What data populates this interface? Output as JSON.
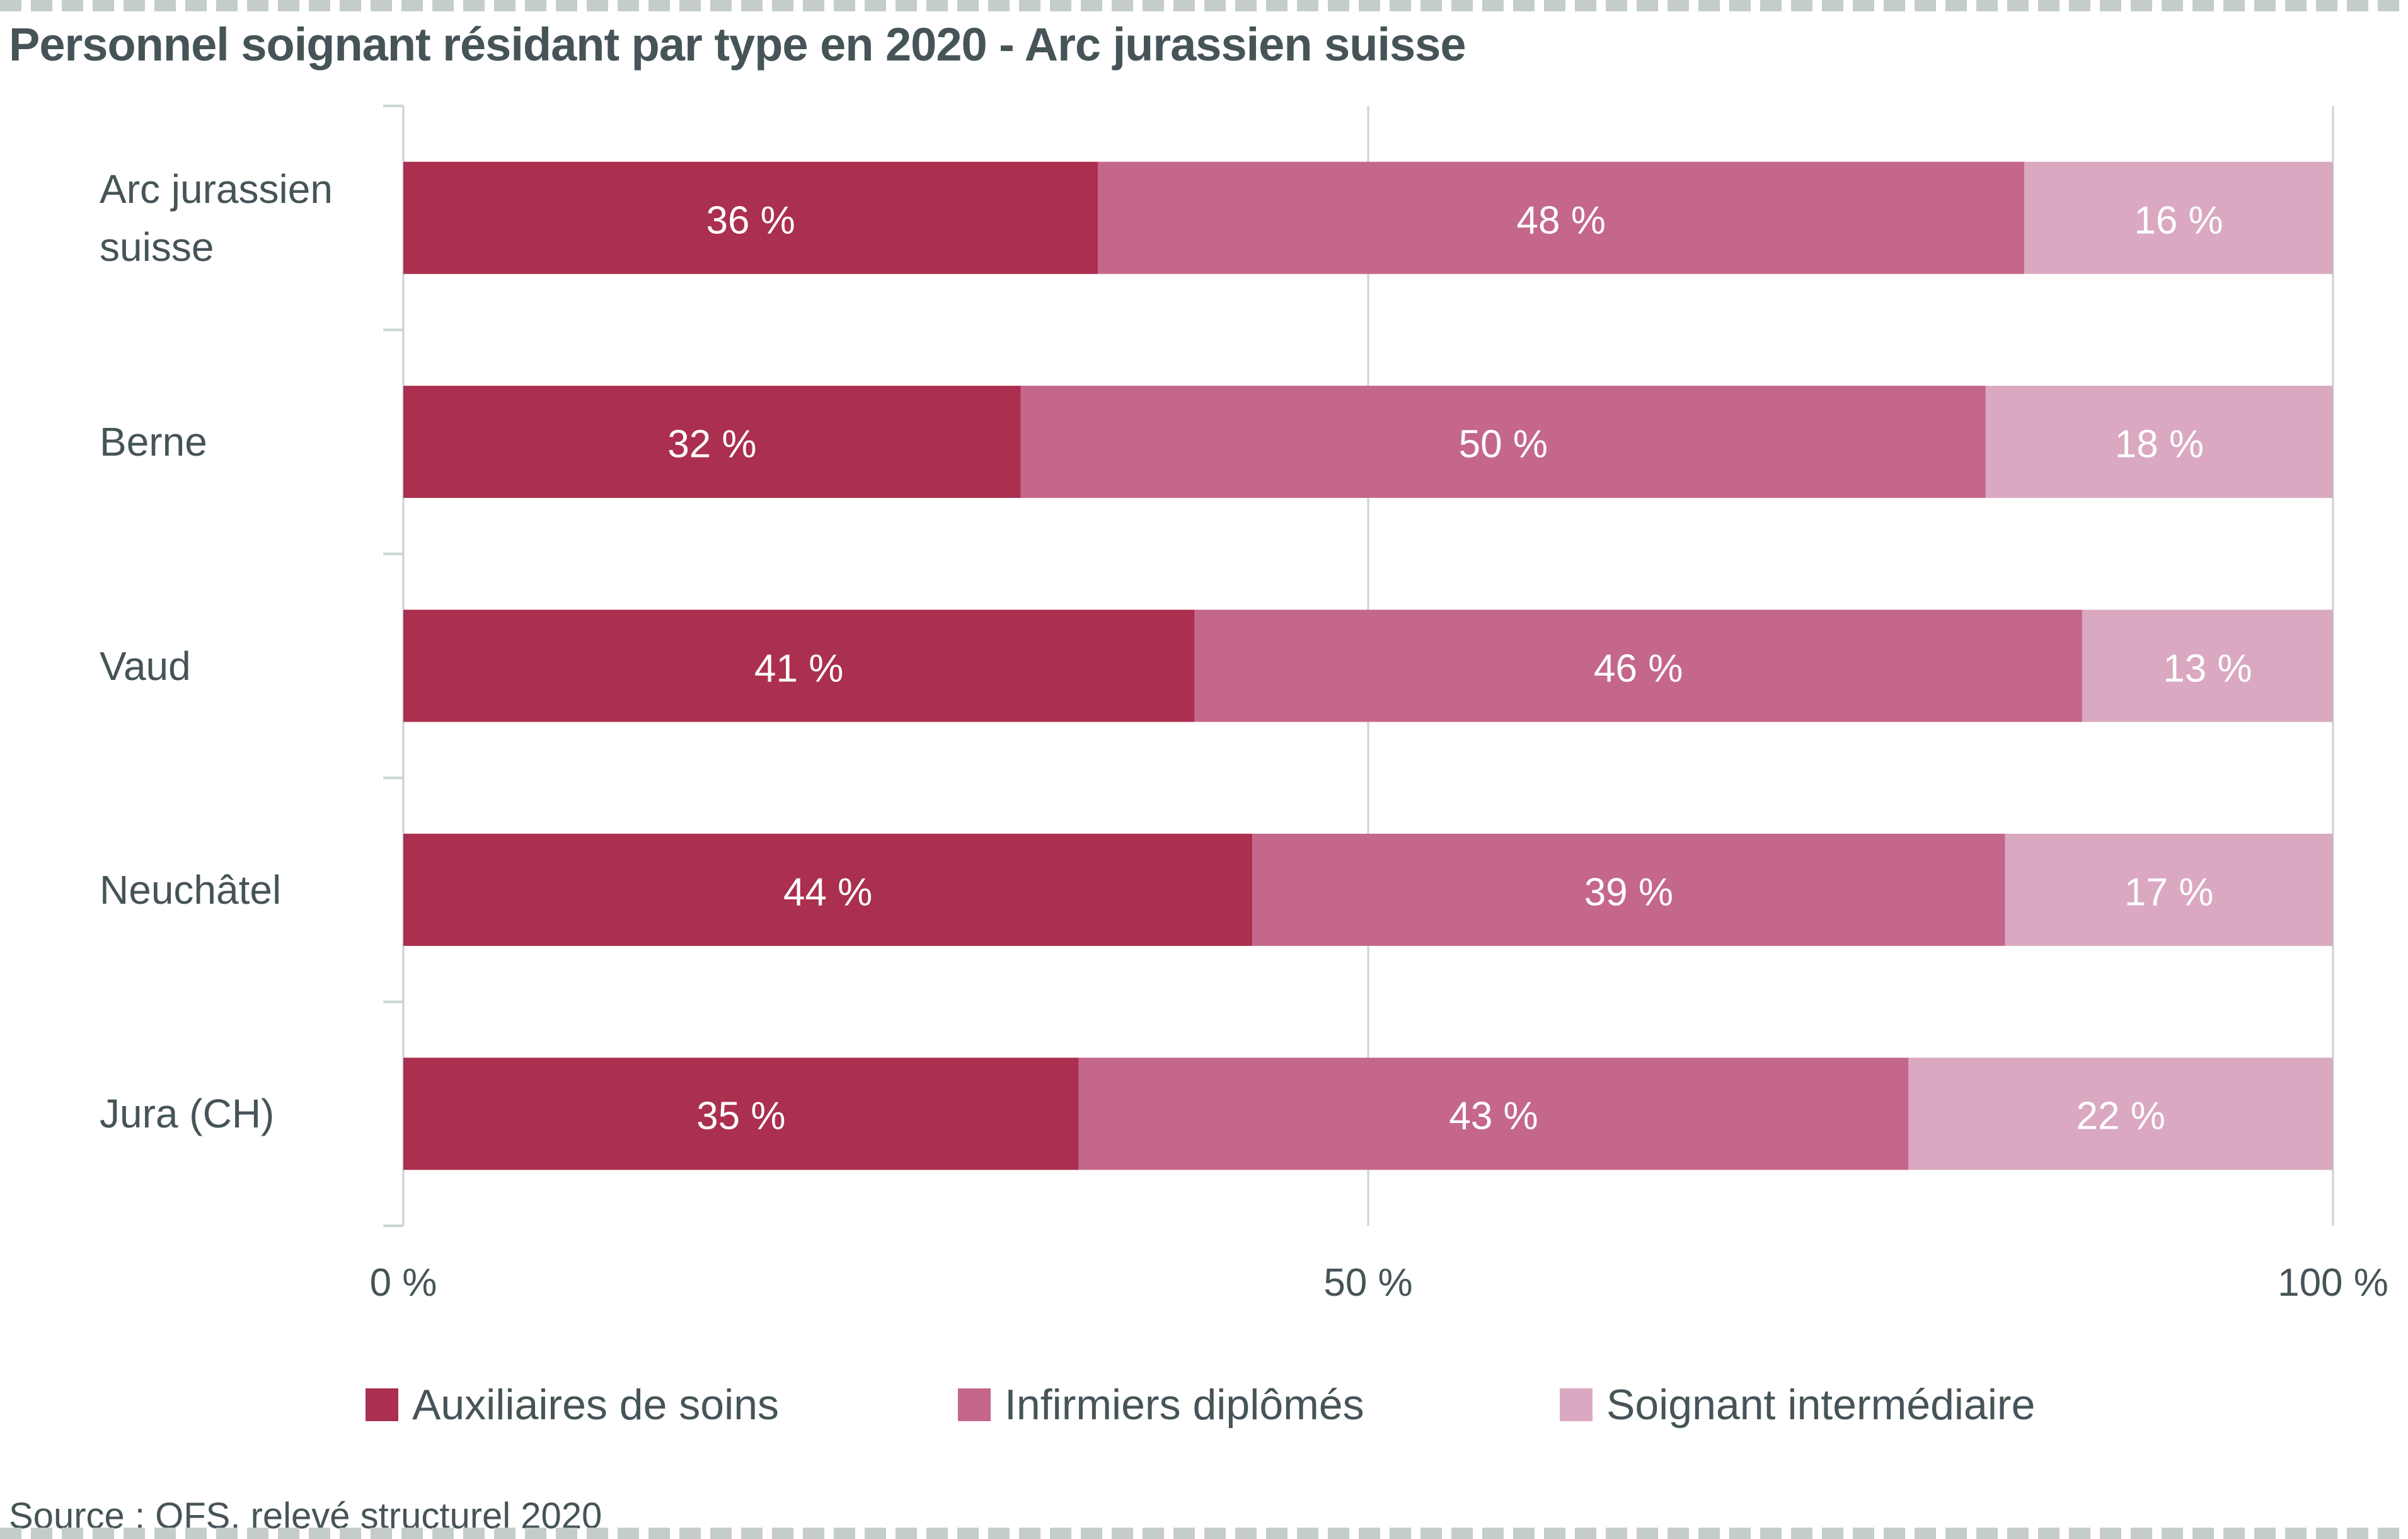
{
  "chart_data": {
    "type": "bar",
    "orientation": "horizontal",
    "stacked": true,
    "title": "Personnel soignant résidant par type en 2020 - Arc jurassien suisse",
    "categories": [
      "Arc jurassien suisse",
      "Berne",
      "Vaud",
      "Neuchâtel",
      "Jura (CH)"
    ],
    "series": [
      {
        "name": "Auxiliaires de soins",
        "color": "#ab2f4e",
        "values": [
          36,
          32,
          41,
          44,
          35
        ]
      },
      {
        "name": "Infirmiers diplômés",
        "color": "#c4678b",
        "values": [
          48,
          50,
          46,
          39,
          43
        ]
      },
      {
        "name": "Soignant intermédiaire",
        "color": "#daa8c1",
        "values": [
          16,
          18,
          13,
          17,
          22
        ]
      }
    ],
    "value_suffix": " %",
    "xlabel": "",
    "ylabel": "",
    "xlim": [
      0,
      100
    ],
    "x_ticks": [
      0,
      50,
      100
    ],
    "x_tick_labels": [
      "0 %",
      "50 %",
      "100 %"
    ],
    "grid": true,
    "legend_position": "bottom",
    "source": "Source : OFS, relevé structurel 2020"
  },
  "colors": {
    "text": "#465458",
    "grid": "#c9d3d3",
    "dash": "#c5cdca"
  }
}
